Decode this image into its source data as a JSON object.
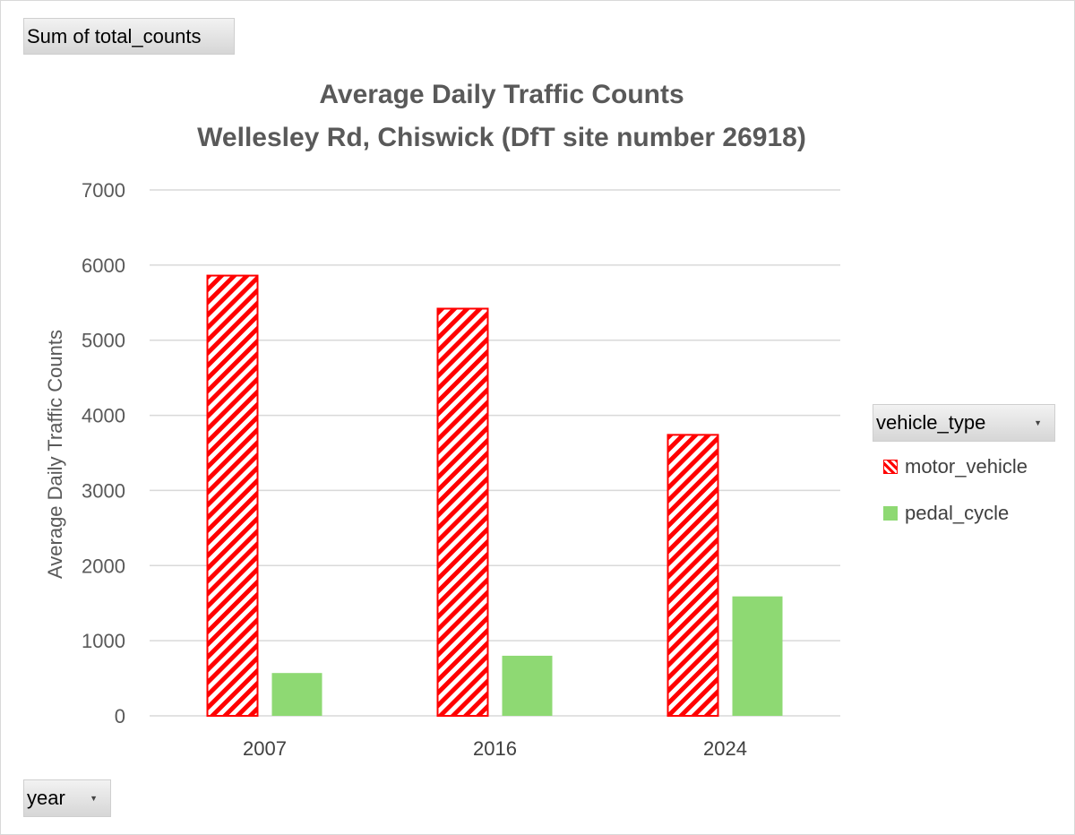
{
  "pivot": {
    "value_field": "Sum of total_counts",
    "axis_field": "year",
    "legend_field": "vehicle_type"
  },
  "chart_data": {
    "type": "bar",
    "title": "Average Daily Traffic Counts",
    "subtitle": "Wellesley Rd, Chiswick (DfT site number 26918)",
    "xlabel": "",
    "ylabel": "Average Daily Traffic Counts",
    "categories": [
      "2007",
      "2016",
      "2024"
    ],
    "series": [
      {
        "name": "motor_vehicle",
        "values": [
          5860,
          5420,
          3740
        ],
        "color": "#ff0000",
        "pattern": "diagonal-stripes"
      },
      {
        "name": "pedal_cycle",
        "values": [
          570,
          800,
          1590
        ],
        "color": "#8ed973"
      }
    ],
    "ylim": [
      0,
      7000
    ],
    "yticks": [
      "0",
      "1000",
      "2000",
      "3000",
      "4000",
      "5000",
      "6000",
      "7000"
    ],
    "grid": true,
    "legend_position": "right"
  }
}
